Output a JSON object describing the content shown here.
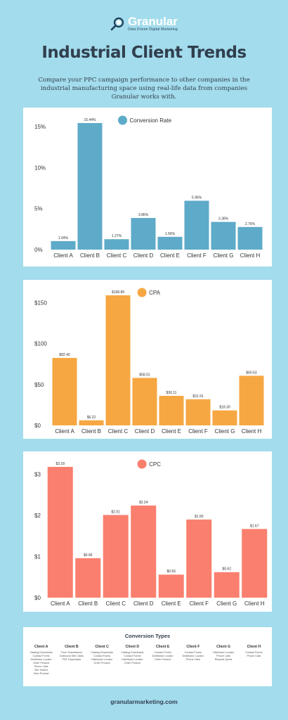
{
  "header": {
    "logo_name": "Granular",
    "logo_tagline": "Data Driven Digital Marketing",
    "title": "Industrial Client Trends",
    "subtitle": "Compare your PPC campaign performance to other companies in the industrial manufacturing space using real-life data from companies Granular works with."
  },
  "chart_data": [
    {
      "type": "bar",
      "title": "Conversion Rate",
      "color": "#5eaac9",
      "categories": [
        "Client A",
        "Client B",
        "Client C",
        "Client D",
        "Client E",
        "Client F",
        "Client G",
        "Client H"
      ],
      "values": [
        1.04,
        15.44,
        1.27,
        3.86,
        1.56,
        5.96,
        3.38,
        2.76
      ],
      "labels": [
        "1.04%",
        "15.44%",
        "1.27%",
        "3.86%",
        "1.56%",
        "5.96%",
        "3.38%",
        "2.76%"
      ],
      "yticks": [
        0,
        5,
        10,
        15
      ],
      "ytick_labels": [
        "0%",
        "5%",
        "10%",
        "15%"
      ],
      "ylim": [
        0,
        15.44
      ],
      "legend": "top-center"
    },
    {
      "type": "bar",
      "title": "CPA",
      "color": "#f6a742",
      "categories": [
        "Client A",
        "Client B",
        "Client C",
        "Client D",
        "Client E",
        "Client F",
        "Client G",
        "Client H"
      ],
      "values": [
        82.4,
        6.22,
        158.89,
        58.01,
        36.11,
        31.91,
        18.3,
        60.63
      ],
      "labels": [
        "$82.40",
        "$6.22",
        "$158.89",
        "$58.01",
        "$36.11",
        "$31.91",
        "$18.30",
        "$60.63"
      ],
      "yticks": [
        0,
        50,
        100,
        150
      ],
      "ytick_labels": [
        "$0",
        "$50",
        "$100",
        "$150"
      ],
      "ylim": [
        0,
        158.89
      ],
      "legend": "top-center"
    },
    {
      "type": "bar",
      "title": "CPC",
      "color": "#fa7f6e",
      "categories": [
        "Client A",
        "Client B",
        "Client C",
        "Client D",
        "Client E",
        "Client F",
        "Client G",
        "Client H"
      ],
      "values": [
        3.18,
        0.96,
        2.01,
        2.24,
        0.56,
        1.9,
        0.62,
        1.67
      ],
      "labels": [
        "$3.18",
        "$0.96",
        "$2.01",
        "$2.24",
        "$0.56",
        "$1.90",
        "$0.62",
        "$1.67"
      ],
      "yticks": [
        0,
        1,
        2,
        3
      ],
      "ytick_labels": [
        "$0",
        "$1",
        "$2",
        "$3"
      ],
      "ylim": [
        0,
        3.18
      ],
      "legend": "top-center"
    }
  ],
  "conversion_types": {
    "title": "Conversion Types",
    "clients": [
      {
        "name": "Client A",
        "items": [
          "Catalog Downloads",
          "Contact Forms",
          "Distributor Locator",
          "Order Product",
          "Phone Calls",
          "Site Search",
          "View Product"
        ]
      },
      {
        "name": "Client B",
        "items": [
          "Form Submissions",
          "Outbound Site Clicks",
          "PDF Downloads"
        ]
      },
      {
        "name": "Client C",
        "items": [
          "Catalog Downloads",
          "Contact Forms",
          "Distributor Locator",
          "Order Product"
        ]
      },
      {
        "name": "Client D",
        "items": [
          "Catalog Downloads",
          "Contact Forms",
          "Distributor Locator",
          "Order Product"
        ]
      },
      {
        "name": "Client E",
        "items": [
          "Contact Forms",
          "Distributor Locator",
          "Order Product"
        ]
      },
      {
        "name": "Client F",
        "items": [
          "Contact Forms",
          "Distributor Locator",
          "Phone Calls"
        ]
      },
      {
        "name": "Client G",
        "items": [
          "Distributor Locator",
          "Phone Calls",
          "Request Quote"
        ]
      },
      {
        "name": "Client H",
        "items": [
          "Contact Forms",
          "Phone Calls"
        ]
      }
    ]
  },
  "footer": {
    "url": "granularmarketing.com"
  }
}
